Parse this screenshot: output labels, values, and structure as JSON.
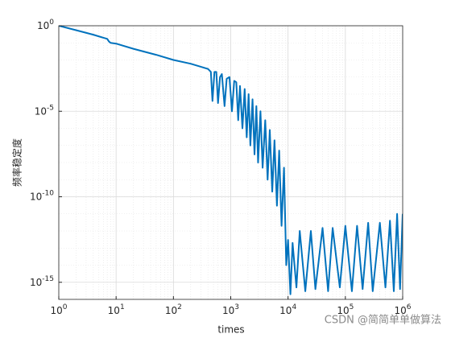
{
  "chart_data": {
    "type": "line",
    "xlabel": "times",
    "ylabel": "频率稳定度",
    "watermark": "CSDN @简简单单做算法",
    "log_x": true,
    "log_y": true,
    "grid": true,
    "minor_grid": true,
    "xlim": [
      1,
      1000000
    ],
    "ylim": [
      1e-16,
      1
    ],
    "xticks": [
      {
        "value": 1,
        "label": "10^0"
      },
      {
        "value": 10,
        "label": "10^1"
      },
      {
        "value": 100,
        "label": "10^2"
      },
      {
        "value": 1000,
        "label": "10^3"
      },
      {
        "value": 10000,
        "label": "10^4"
      },
      {
        "value": 100000,
        "label": "10^5"
      },
      {
        "value": 1000000,
        "label": "10^6"
      }
    ],
    "yticks": [
      {
        "value": 1,
        "label": "10^0"
      },
      {
        "value": 1e-05,
        "label": "10^-5"
      },
      {
        "value": 1e-10,
        "label": "10^-10"
      },
      {
        "value": 1e-15,
        "label": "10^-15"
      }
    ],
    "series": [
      {
        "color": "#0072bd",
        "x": [
          1,
          2,
          4,
          7,
          7.5,
          8,
          10,
          20,
          50,
          100,
          200,
          300,
          400,
          450,
          480,
          520,
          560,
          600,
          650,
          700,
          780,
          850,
          950,
          1050,
          1150,
          1250,
          1350,
          1450,
          1600,
          1750,
          1900,
          2050,
          2200,
          2400,
          2600,
          2800,
          3000,
          3300,
          3600,
          4000,
          4400,
          4800,
          5300,
          5800,
          6400,
          7000,
          7700,
          8500,
          9300,
          10000,
          11000,
          12000,
          14000,
          16000,
          20000,
          25000,
          30000,
          40000,
          50000,
          60000,
          80000,
          100000,
          130000,
          160000,
          200000,
          250000,
          300000,
          400000,
          500000,
          600000,
          700000,
          800000,
          900000,
          1000000
        ],
        "values": [
          1,
          0.55,
          0.3,
          0.17,
          0.12,
          0.1,
          0.09,
          0.045,
          0.02,
          0.01,
          0.006,
          0.004,
          0.003,
          0.002,
          4e-05,
          0.002,
          0.002,
          3e-05,
          0.001,
          0.0015,
          2e-05,
          0.0008,
          0.001,
          1e-05,
          0.0006,
          0.0005,
          3e-06,
          0.0003,
          1e-06,
          0.0002,
          3e-07,
          0.0001,
          1e-07,
          5e-05,
          3e-08,
          2e-05,
          1e-08,
          1e-05,
          5e-09,
          3e-06,
          1e-09,
          8e-07,
          2e-10,
          2e-07,
          3e-11,
          5e-08,
          2e-12,
          5e-09,
          1e-14,
          3e-13,
          2e-16,
          2e-13,
          5e-16,
          1e-12,
          3e-16,
          1e-12,
          4e-16,
          1.5e-12,
          3e-16,
          1.5e-12,
          5e-16,
          2e-12,
          3e-16,
          2e-12,
          4e-16,
          3e-12,
          3e-16,
          3e-12,
          5e-16,
          4e-12,
          3e-16,
          1e-11,
          4e-16,
          1e-11
        ]
      }
    ]
  }
}
